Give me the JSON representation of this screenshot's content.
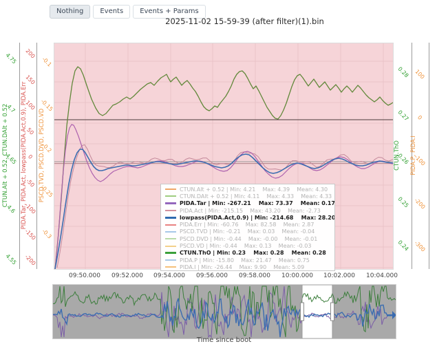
{
  "toolbar": {
    "buttons": [
      {
        "label": "Nothing",
        "active": true
      },
      {
        "label": "Events",
        "active": false
      },
      {
        "label": "Events + Params",
        "active": false
      }
    ]
  },
  "header": {
    "title": "2025-11-02 15-59-39 (after filter)(1).bin"
  },
  "axes": {
    "left_alt": {
      "title": "CTUN.Alt + 0.52, CTUN.DAlt + 0.52",
      "color": "#2f9e2f",
      "ticks": [
        "4.75",
        "4.7",
        "4.65",
        "4.6",
        "4.55"
      ]
    },
    "left_pida": {
      "title": "PIDA.Tar, PIDA.Act, lowpass(PIDA.Act,0.9), PIDA.Err",
      "color": "#d9534f",
      "ticks": [
        "200",
        "150",
        "100",
        "50",
        "0",
        "-50",
        "-100",
        "-150",
        "-200"
      ]
    },
    "left_pscd": {
      "title": "PSCD.TVD, PSCD.DVD, PSCD.VD",
      "color": "#ef9239",
      "ticks": [
        "-0.1",
        "-0.15",
        "-0.2",
        "-0.25",
        "-0.3"
      ]
    },
    "right_tho": {
      "title": "CTUN.ThO",
      "color": "#2f9e2f",
      "ticks": [
        "0.28",
        "0.27",
        "0.26",
        "0.25",
        "0.24"
      ]
    },
    "right_pid": {
      "title": "PIDA.P, PIDA.I",
      "color": "#ef9239",
      "ticks": [
        "100",
        "0",
        "-100",
        "-200",
        "-300"
      ]
    }
  },
  "x_axis": {
    "ticks": [
      "09:50.000",
      "09:52.000",
      "09:54.000",
      "09:56.000",
      "09:58.000",
      "10:00.000",
      "10:02.000",
      "10:04.000"
    ],
    "label": "Time since boot"
  },
  "chart_data": {
    "type": "line",
    "title": "2025-11-02 15-59-39 (after filter)(1).bin",
    "xlabel": "Time since boot",
    "x_tick_labels": [
      "09:50.000",
      "09:52.000",
      "09:54.000",
      "09:56.000",
      "09:58.000",
      "10:00.000",
      "10:02.000",
      "10:04.000"
    ],
    "legend_position": "inside-bottom-center",
    "grid": true,
    "series": [
      {
        "name": "CTUN.Alt + 0.52",
        "min": "4.21",
        "max": "4.39",
        "mean": "4.30",
        "color": "#f0a868",
        "bold": false
      },
      {
        "name": "CTUN.DAlt + 0.52",
        "min": "4.11",
        "max": "4.33",
        "mean": "4.33",
        "color": "#9fcc7f",
        "bold": false
      },
      {
        "name": "PIDA.Tar",
        "min": "-267.21",
        "max": "73.37",
        "mean": "0.17",
        "color": "#9467bd",
        "bold": true
      },
      {
        "name": "PIDA.Act",
        "min": "-215.15",
        "max": "43.20",
        "mean": "-2.73",
        "color": "#d4909d",
        "bold": false
      },
      {
        "name": "lowpass(PIDA.Act,0.9)",
        "min": "-214.68",
        "max": "28.20",
        "mean": "-2.99",
        "color": "#2f6bb0",
        "bold": true
      },
      {
        "name": "PIDA.Err",
        "min": "-60.76",
        "max": "82.58",
        "mean": "2.87",
        "color": "#e88181",
        "bold": false
      },
      {
        "name": "PSCD.TVD",
        "min": "-0.21",
        "max": "0.03",
        "mean": "-0.04",
        "color": "#a6c8e8",
        "bold": false
      },
      {
        "name": "PSCD.DVD",
        "min": "-0.44",
        "max": "-0.00",
        "mean": "-0.01",
        "color": "#b8dba8",
        "bold": false
      },
      {
        "name": "PSCD.VD",
        "min": "-0.44",
        "max": "0.13",
        "mean": "-0.03",
        "color": "#f3d08a",
        "bold": false
      },
      {
        "name": "CTUN.ThO",
        "min": "0.23",
        "max": "0.28",
        "mean": "0.28",
        "color": "#3ba03b",
        "bold": true
      },
      {
        "name": "PIDA.P",
        "min": "-15.80",
        "max": "21.47",
        "mean": "0.75",
        "color": "#a6c8e8",
        "bold": false
      },
      {
        "name": "PIDA.I",
        "min": "-26.44",
        "max": "9.90",
        "mean": "5.09",
        "color": "#f5c07a",
        "bold": false
      }
    ]
  },
  "colors": {
    "plot_bg": "#f6d4d8",
    "grid": "#eac3c8",
    "zero_dark": "#4a3a3a",
    "zero_gray": "#9a9a9a",
    "zero_red": "#b5898e",
    "curve_green": "#61883a",
    "curve_purple": "#ad62ae",
    "curve_blue": "#3b6db0",
    "curve_rose": "#c4899b",
    "nav_gray": "#a9a9a9",
    "nav_green": "#3a7d3a",
    "nav_blue": "#3b6cb0",
    "nav_purple": "#7b5ea7"
  },
  "curves": {
    "green": [
      79,
      390,
      84,
      338,
      88,
      288,
      92,
      232,
      96,
      182,
      100,
      148,
      104,
      120,
      108,
      102,
      112,
      96,
      116,
      99,
      120,
      108,
      126,
      126,
      132,
      143,
      138,
      156,
      143,
      164,
      148,
      167,
      153,
      164,
      158,
      158,
      163,
      152,
      168,
      150,
      173,
      147,
      178,
      143,
      183,
      140,
      188,
      143,
      193,
      139,
      198,
      134,
      203,
      129,
      208,
      125,
      213,
      121,
      218,
      119,
      223,
      123,
      228,
      117,
      233,
      112,
      238,
      109,
      241,
      107,
      244,
      113,
      247,
      118,
      251,
      114,
      255,
      111,
      259,
      117,
      263,
      123,
      267,
      119,
      271,
      116,
      275,
      121,
      279,
      127,
      283,
      132,
      287,
      139,
      291,
      147,
      295,
      154,
      299,
      158,
      303,
      160,
      307,
      157,
      311,
      153,
      315,
      155,
      319,
      149,
      323,
      144,
      327,
      139,
      331,
      132,
      335,
      124,
      339,
      114,
      343,
      107,
      347,
      103,
      351,
      102,
      355,
      106,
      359,
      113,
      363,
      121,
      367,
      128,
      371,
      124,
      375,
      131,
      379,
      139,
      383,
      147,
      387,
      155,
      391,
      161,
      395,
      167,
      399,
      171,
      403,
      172,
      407,
      167,
      411,
      159,
      415,
      149,
      419,
      137,
      423,
      125,
      427,
      115,
      431,
      109,
      435,
      107,
      439,
      112,
      443,
      118,
      447,
      124,
      451,
      119,
      455,
      114,
      459,
      120,
      463,
      126,
      467,
      122,
      471,
      118,
      475,
      124,
      479,
      130,
      483,
      126,
      487,
      122,
      491,
      127,
      495,
      133,
      499,
      128,
      503,
      124,
      507,
      128,
      511,
      133,
      515,
      128,
      519,
      123,
      523,
      127,
      527,
      132,
      531,
      137,
      535,
      141,
      539,
      144,
      543,
      147,
      547,
      144,
      551,
      140,
      555,
      145,
      559,
      149,
      563,
      152,
      567,
      150,
      570,
      148
    ],
    "purple": [
      79,
      390,
      82,
      362,
      85,
      324,
      88,
      284,
      91,
      248,
      94,
      218,
      97,
      197,
      100,
      185,
      103,
      180,
      106,
      181,
      109,
      187,
      113,
      197,
      117,
      209,
      121,
      221,
      125,
      233,
      129,
      243,
      133,
      251,
      137,
      257,
      141,
      261,
      145,
      263,
      149,
      261,
      154,
      257,
      159,
      252,
      164,
      248,
      169,
      246,
      174,
      244,
      179,
      242,
      184,
      241,
      189,
      241,
      194,
      242,
      199,
      243,
      204,
      242,
      209,
      240,
      214,
      238,
      219,
      236,
      224,
      234,
      229,
      233,
      234,
      233,
      239,
      234,
      244,
      236,
      249,
      238,
      254,
      240,
      259,
      241,
      264,
      241,
      269,
      240,
      274,
      238,
      279,
      236,
      284,
      234,
      289,
      233,
      294,
      234,
      299,
      236,
      304,
      239,
      309,
      242,
      314,
      245,
      319,
      247,
      324,
      248,
      329,
      247,
      334,
      243,
      339,
      237,
      344,
      230,
      349,
      224,
      354,
      220,
      359,
      219,
      364,
      221,
      369,
      226,
      374,
      233,
      379,
      240,
      384,
      247,
      389,
      252,
      394,
      256,
      399,
      258,
      404,
      257,
      409,
      254,
      414,
      249,
      419,
      244,
      424,
      240,
      429,
      237,
      434,
      236,
      439,
      237,
      444,
      240,
      449,
      243,
      454,
      246,
      459,
      247,
      464,
      246,
      469,
      243,
      474,
      239,
      479,
      235,
      484,
      231,
      489,
      228,
      494,
      227,
      499,
      228,
      504,
      231,
      509,
      235,
      514,
      239,
      519,
      242,
      524,
      244,
      529,
      244,
      534,
      242,
      539,
      239,
      544,
      236,
      549,
      234,
      554,
      233,
      559,
      234,
      564,
      236,
      570,
      237
    ],
    "blue": [
      79,
      390,
      83,
      368,
      87,
      344,
      91,
      318,
      95,
      291,
      99,
      266,
      103,
      246,
      107,
      231,
      111,
      221,
      115,
      216,
      119,
      216,
      123,
      221,
      127,
      228,
      131,
      235,
      135,
      241,
      139,
      245,
      143,
      247,
      147,
      247,
      151,
      246,
      156,
      244,
      161,
      243,
      166,
      242,
      171,
      241,
      176,
      240,
      181,
      239,
      186,
      239,
      191,
      240,
      196,
      240,
      201,
      239,
      206,
      238,
      211,
      237,
      216,
      236,
      221,
      235,
      226,
      234,
      231,
      234,
      236,
      235,
      241,
      236,
      246,
      237,
      251,
      238,
      256,
      238,
      261,
      237,
      266,
      236,
      271,
      235,
      276,
      234,
      281,
      233,
      286,
      233,
      291,
      234,
      296,
      235,
      301,
      237,
      306,
      239,
      311,
      241,
      316,
      242,
      321,
      243,
      326,
      242,
      331,
      240,
      336,
      236,
      341,
      231,
      346,
      227,
      351,
      224,
      356,
      223,
      361,
      224,
      366,
      228,
      371,
      233,
      376,
      238,
      381,
      243,
      386,
      247,
      391,
      250,
      396,
      251,
      401,
      250,
      406,
      248,
      411,
      245,
      416,
      242,
      421,
      239,
      426,
      237,
      431,
      236,
      436,
      237,
      441,
      239,
      446,
      241,
      451,
      243,
      456,
      244,
      461,
      243,
      466,
      241,
      471,
      238,
      476,
      235,
      481,
      232,
      486,
      230,
      491,
      229,
      496,
      230,
      501,
      232,
      506,
      235,
      511,
      237,
      516,
      239,
      521,
      240,
      526,
      240,
      531,
      239,
      536,
      237,
      541,
      235,
      546,
      234,
      551,
      233,
      556,
      234,
      561,
      235,
      570,
      236
    ]
  },
  "navigator": {
    "selection": {
      "from": 362,
      "to": 406
    },
    "segments": [
      {
        "from": 0,
        "to": 8,
        "amp": 4
      },
      {
        "from": 8,
        "to": 22,
        "amp": 34
      },
      {
        "from": 22,
        "to": 157,
        "amp": 5
      },
      {
        "from": 157,
        "to": 362,
        "amp": 38
      },
      {
        "from": 362,
        "to": 406,
        "amp": 5
      },
      {
        "from": 406,
        "to": 442,
        "amp": 8
      },
      {
        "from": 442,
        "to": 486,
        "amp": 32
      },
      {
        "from": 486,
        "to": 498,
        "amp": 2
      }
    ]
  }
}
